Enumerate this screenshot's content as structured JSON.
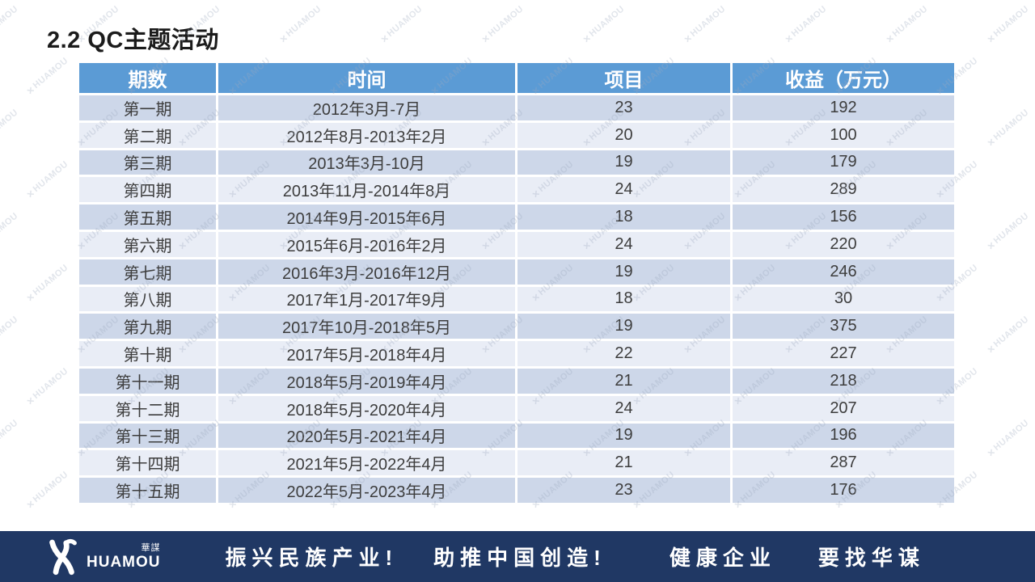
{
  "page": {
    "title": "2.2 QC主题活动"
  },
  "table": {
    "headers": [
      "期数",
      "时间",
      "项目",
      "收益（万元）"
    ],
    "rows": [
      {
        "period": "第一期",
        "time": "2012年3月-7月",
        "projects": "23",
        "revenue": "192"
      },
      {
        "period": "第二期",
        "time": "2012年8月-2013年2月",
        "projects": "20",
        "revenue": "100"
      },
      {
        "period": "第三期",
        "time": "2013年3月-10月",
        "projects": "19",
        "revenue": "179"
      },
      {
        "period": "第四期",
        "time": "2013年11月-2014年8月",
        "projects": "24",
        "revenue": "289"
      },
      {
        "period": "第五期",
        "time": "2014年9月-2015年6月",
        "projects": "18",
        "revenue": "156"
      },
      {
        "period": "第六期",
        "time": "2015年6月-2016年2月",
        "projects": "24",
        "revenue": "220"
      },
      {
        "period": "第七期",
        "time": "2016年3月-2016年12月",
        "projects": "19",
        "revenue": "246"
      },
      {
        "period": "第八期",
        "time": "2017年1月-2017年9月",
        "projects": "18",
        "revenue": "30"
      },
      {
        "period": "第九期",
        "time": "2017年10月-2018年5月",
        "projects": "19",
        "revenue": "375"
      },
      {
        "period": "第十期",
        "time": "2017年5月-2018年4月",
        "projects": "22",
        "revenue": "227"
      },
      {
        "period": "第十一期",
        "time": "2018年5月-2019年4月",
        "projects": "21",
        "revenue": "218"
      },
      {
        "period": "第十二期",
        "time": "2018年5月-2020年4月",
        "projects": "24",
        "revenue": "207"
      },
      {
        "period": "第十三期",
        "time": "2020年5月-2021年4月",
        "projects": "19",
        "revenue": "196"
      },
      {
        "period": "第十四期",
        "time": "2021年5月-2022年4月",
        "projects": "21",
        "revenue": "287"
      },
      {
        "period": "第十五期",
        "time": "2022年5月-2023年4月",
        "projects": "23",
        "revenue": "176"
      }
    ]
  },
  "footer": {
    "logo": {
      "brand": "HUAMOU",
      "brand_cn": "華謀"
    },
    "slogans": [
      "振兴民族产业!",
      "助推中国创造!",
      "健康企业",
      "要找华谋"
    ]
  },
  "watermark": {
    "text": "HUAMOU"
  },
  "colors": {
    "header_bg": "#5B9BD5",
    "row_dark": "#CDD7E9",
    "row_light": "#E9EDF6",
    "footer_bg": "#203864",
    "table_text": "#3D3D3D"
  }
}
